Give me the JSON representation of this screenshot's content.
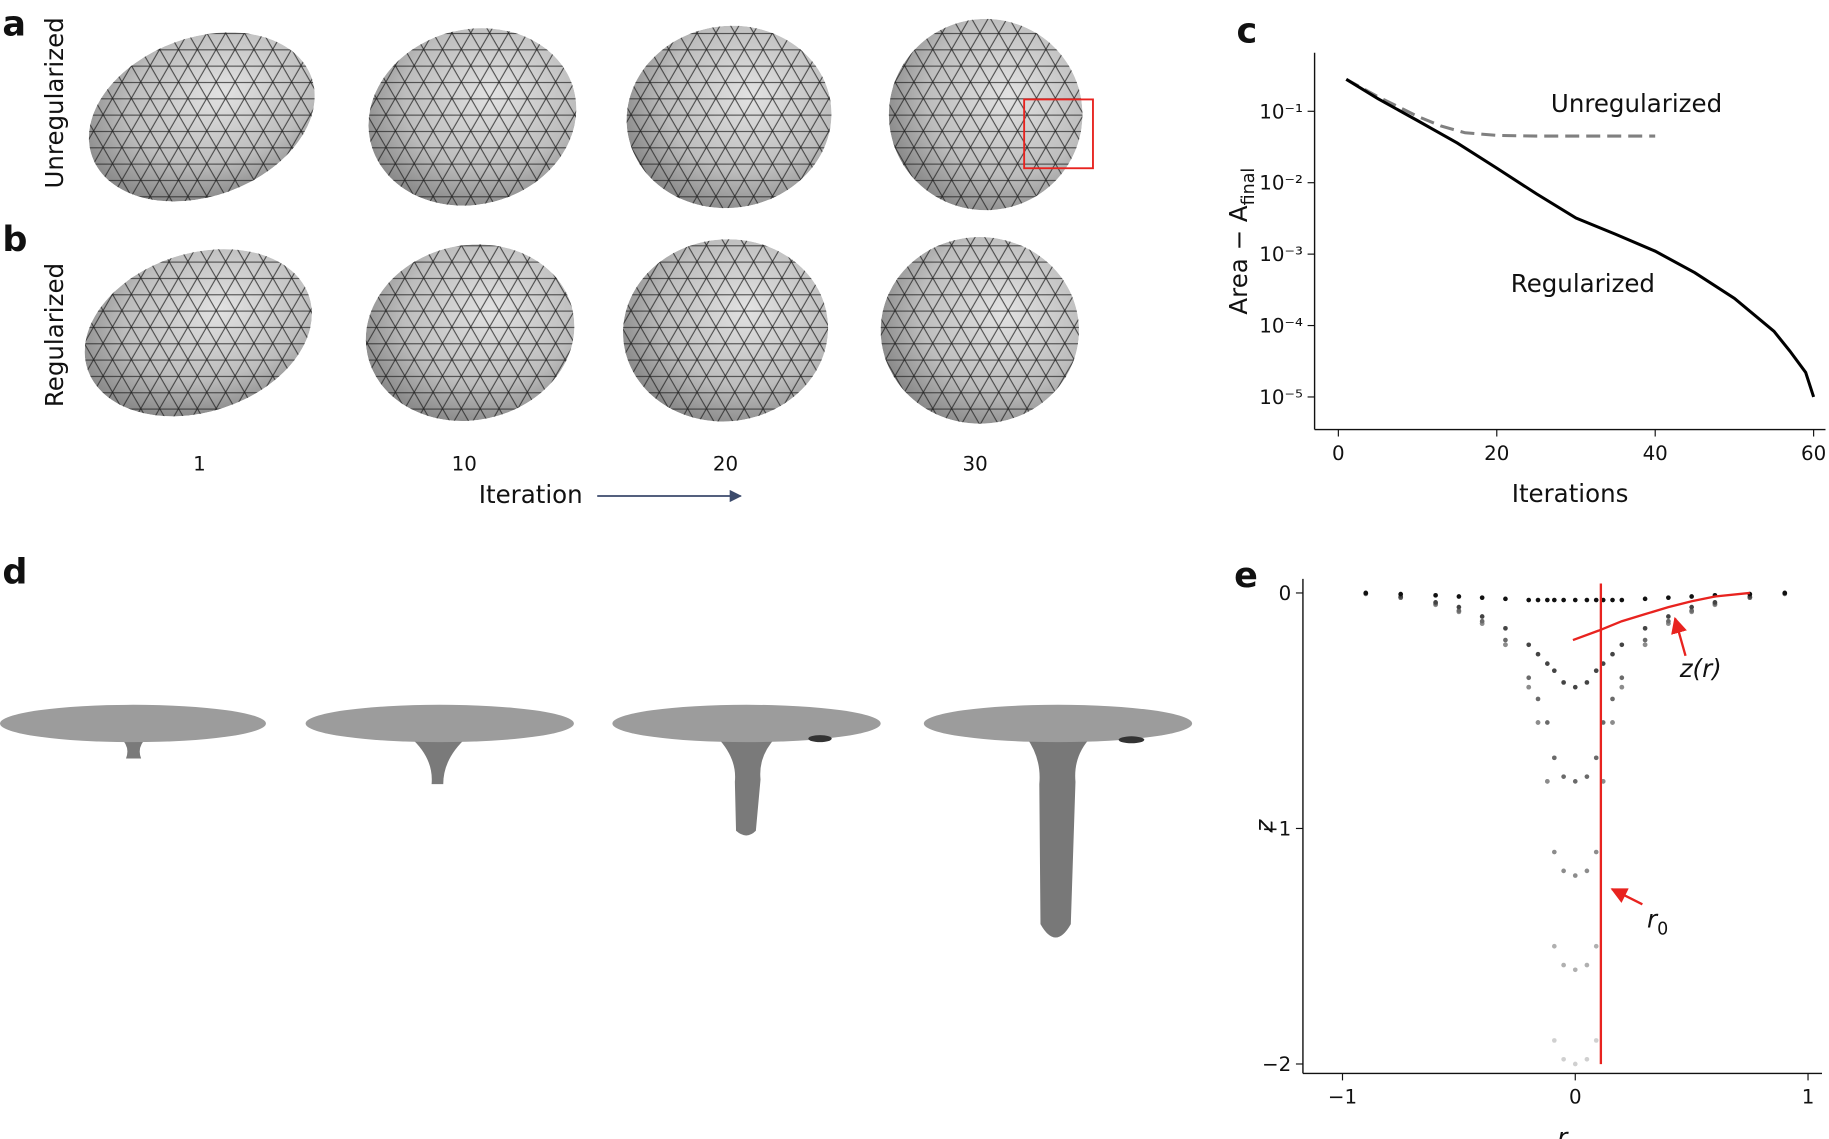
{
  "panel_labels": [
    "a",
    "b",
    "c",
    "d",
    "e"
  ],
  "row_labels": [
    "Unregularized",
    "Regularized"
  ],
  "iteration_labels": [
    "1",
    "10",
    "20",
    "30"
  ],
  "iteration_axis_label": "Iteration",
  "chart_data": [
    {
      "type": "line",
      "yscale": "log",
      "xlabel": "Iterations",
      "ylabel": "Area − A",
      "ylabel_subscript": "final",
      "xlim": [
        -3,
        61.5
      ],
      "ylim": [
        3.5e-06,
        0.66
      ],
      "xticks": [
        0,
        20,
        40,
        60
      ],
      "yticks": [
        {
          "value": 0.1,
          "label": "10⁻¹"
        },
        {
          "value": 0.01,
          "label": "10⁻²"
        },
        {
          "value": 0.001,
          "label": "10⁻³"
        },
        {
          "value": 0.0001,
          "label": "10⁻⁴"
        },
        {
          "value": 1e-05,
          "label": "10⁻⁵"
        }
      ],
      "series": [
        {
          "name": "Unregularized",
          "color": "#808080",
          "dashed": true,
          "x": [
            1,
            5,
            10,
            13,
            16,
            20,
            25,
            30,
            35,
            40
          ],
          "values": [
            0.28,
            0.16,
            0.085,
            0.062,
            0.05,
            0.046,
            0.045,
            0.045,
            0.045,
            0.045
          ]
        },
        {
          "name": "Regularized",
          "color": "#000000",
          "dashed": false,
          "x": [
            1,
            5,
            10,
            15,
            20,
            25,
            30,
            35,
            40,
            45,
            50,
            55,
            57,
            59,
            60
          ],
          "values": [
            0.28,
            0.15,
            0.074,
            0.036,
            0.016,
            0.007,
            0.0032,
            0.0019,
            0.0011,
            0.00055,
            0.00024,
            8.3e-05,
            4.4e-05,
            2.2e-05,
            1e-05
          ]
        }
      ]
    },
    {
      "type": "scatter",
      "xlabel": "r",
      "ylabel": "z",
      "xlim": [
        -1.17,
        1.06
      ],
      "ylim": [
        -2.04,
        0.06
      ],
      "xticks": [
        {
          "value": -1,
          "label": "−1"
        },
        0,
        1
      ],
      "yticks": [
        {
          "value": -2,
          "label": "−2"
        },
        {
          "value": -1,
          "label": "−1"
        },
        0
      ],
      "x": [
        -0.9,
        -0.75,
        -0.6,
        -0.5,
        -0.4,
        -0.3,
        -0.2,
        -0.16,
        -0.12,
        -0.09,
        -0.05,
        0,
        0.05,
        0.09,
        0.12,
        0.16,
        0.2,
        0.3,
        0.4,
        0.5,
        0.6,
        0.75,
        0.9
      ],
      "series": [
        {
          "color": "#d0d0d0",
          "values": [
            -0.004,
            -0.02,
            -0.05,
            -0.08,
            -0.13,
            -0.22,
            -0.4,
            -0.55,
            -0.8,
            -1.9,
            -1.98,
            -2,
            -1.98,
            -1.9,
            -0.8,
            -0.55,
            -0.4,
            -0.22,
            -0.13,
            -0.08,
            -0.05,
            -0.02,
            -0.004
          ]
        },
        {
          "color": "#b0b0b0",
          "values": [
            -0.004,
            -0.02,
            -0.05,
            -0.08,
            -0.13,
            -0.22,
            -0.4,
            -0.55,
            -0.8,
            -1.5,
            -1.58,
            -1.6,
            -1.58,
            -1.5,
            -0.8,
            -0.55,
            -0.4,
            -0.22,
            -0.13,
            -0.08,
            -0.05,
            -0.02,
            -0.004
          ]
        },
        {
          "color": "#8c8c8c",
          "values": [
            -0.004,
            -0.02,
            -0.05,
            -0.08,
            -0.13,
            -0.22,
            -0.4,
            -0.55,
            -0.8,
            -1.1,
            -1.18,
            -1.2,
            -1.18,
            -1.1,
            -0.8,
            -0.55,
            -0.4,
            -0.22,
            -0.13,
            -0.08,
            -0.05,
            -0.02,
            -0.004
          ]
        },
        {
          "color": "#6a6a6a",
          "values": [
            -0.003,
            -0.02,
            -0.045,
            -0.075,
            -0.12,
            -0.2,
            -0.36,
            -0.45,
            -0.55,
            -0.7,
            -0.78,
            -0.8,
            -0.78,
            -0.7,
            -0.55,
            -0.45,
            -0.36,
            -0.2,
            -0.12,
            -0.075,
            -0.045,
            -0.02,
            -0.003
          ]
        },
        {
          "color": "#444444",
          "values": [
            0,
            -0.015,
            -0.04,
            -0.06,
            -0.1,
            -0.15,
            -0.22,
            -0.26,
            -0.3,
            -0.33,
            -0.38,
            -0.4,
            -0.38,
            -0.33,
            -0.3,
            -0.26,
            -0.22,
            -0.15,
            -0.1,
            -0.06,
            -0.04,
            -0.015,
            0
          ]
        },
        {
          "color": "#111111",
          "values": [
            0,
            -0.005,
            -0.01,
            -0.015,
            -0.02,
            -0.025,
            -0.03,
            -0.03,
            -0.03,
            -0.03,
            -0.03,
            -0.03,
            -0.03,
            -0.03,
            -0.03,
            -0.03,
            -0.03,
            -0.025,
            -0.02,
            -0.015,
            -0.01,
            -0.005,
            0
          ]
        }
      ],
      "fit_curve": {
        "color": "#e8231f",
        "x": [
          -0.01,
          0.1,
          0.2,
          0.3,
          0.4,
          0.5,
          0.6,
          0.75
        ],
        "values": [
          -0.2,
          -0.16,
          -0.12,
          -0.09,
          -0.06,
          -0.035,
          -0.015,
          0
        ]
      },
      "reference_line": {
        "color": "#e8231f",
        "x": 0.11
      },
      "annotations": [
        {
          "text": "z(r)"
        },
        {
          "text": "r",
          "subscript": "0"
        }
      ]
    }
  ]
}
